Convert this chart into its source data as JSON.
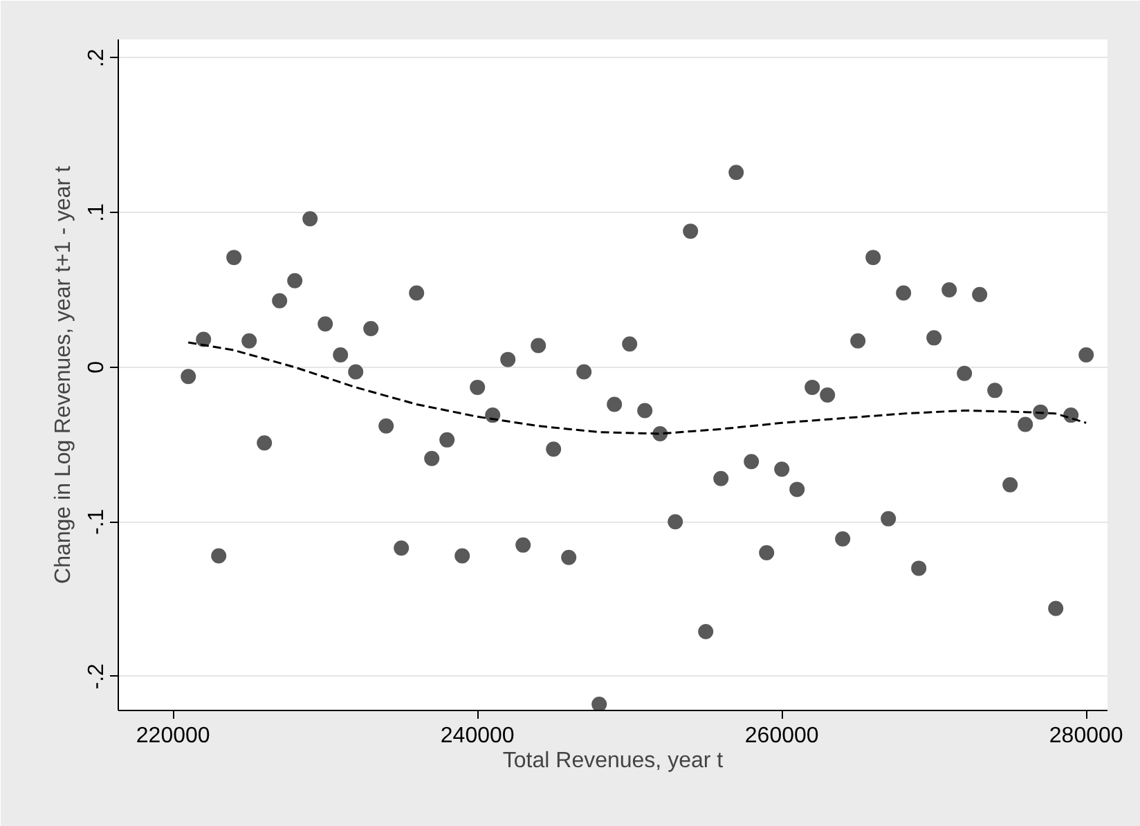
{
  "chart_data": {
    "type": "scatter",
    "xlabel": "Total Revenues, year t",
    "ylabel": "Change in Log Revenues, year t+1 - year t",
    "xlim": [
      216400,
      281400
    ],
    "ylim": [
      -0.222,
      0.212
    ],
    "xticks": [
      220000,
      240000,
      260000,
      280000
    ],
    "yticks": [
      {
        "value": -0.2,
        "label": "-.2"
      },
      {
        "value": -0.1,
        "label": "-.1"
      },
      0,
      {
        "value": 0.1,
        "label": ".1"
      },
      {
        "value": 0.2,
        "label": ".2"
      }
    ],
    "grid": "y",
    "marker": "circle",
    "series": [
      {
        "color": "#595959",
        "x": [
          221000,
          222000,
          223000,
          224000,
          225000,
          226000,
          227000,
          228000,
          229000,
          230000,
          231000,
          232000,
          233000,
          234000,
          235000,
          236000,
          237000,
          238000,
          239000,
          240000,
          241000,
          242000,
          243000,
          244000,
          245000,
          246000,
          247000,
          248000,
          249000,
          250000,
          251000,
          252000,
          253000,
          254000,
          255000,
          256000,
          257000,
          258000,
          259000,
          260000,
          261000,
          262000,
          263000,
          264000,
          265000,
          266000,
          267000,
          268000,
          269000,
          270000,
          271000,
          272000,
          273000,
          274000,
          275000,
          276000,
          277000,
          278000,
          279000,
          280000
        ],
        "values": [
          -0.006,
          0.018,
          -0.122,
          0.071,
          0.017,
          -0.049,
          0.043,
          0.056,
          0.096,
          0.028,
          0.008,
          -0.003,
          0.025,
          -0.038,
          -0.117,
          0.048,
          -0.059,
          -0.047,
          -0.122,
          -0.013,
          -0.031,
          0.005,
          -0.115,
          0.014,
          -0.053,
          -0.123,
          -0.003,
          -0.218,
          -0.024,
          0.015,
          -0.028,
          -0.043,
          -0.1,
          0.088,
          -0.171,
          -0.072,
          0.126,
          -0.061,
          -0.12,
          -0.066,
          -0.079,
          -0.013,
          -0.018,
          -0.111,
          0.017,
          0.071,
          -0.098,
          0.048,
          -0.13,
          0.019,
          0.05,
          -0.004,
          0.047,
          -0.015,
          -0.076,
          -0.037,
          -0.029,
          -0.156,
          -0.031,
          0.008
        ]
      },
      {
        "type": "line",
        "color": "#000000",
        "line_style": "dashed",
        "marker": "none",
        "x": [
          221000,
          224000,
          228000,
          232000,
          236000,
          240000,
          244000,
          248000,
          252000,
          256000,
          260000,
          264000,
          268000,
          272000,
          276000,
          278000,
          280000
        ],
        "values": [
          0.016,
          0.011,
          0.0,
          -0.013,
          -0.024,
          -0.032,
          -0.038,
          -0.042,
          -0.043,
          -0.04,
          -0.036,
          -0.033,
          -0.03,
          -0.028,
          -0.029,
          -0.03,
          -0.036
        ]
      }
    ]
  }
}
